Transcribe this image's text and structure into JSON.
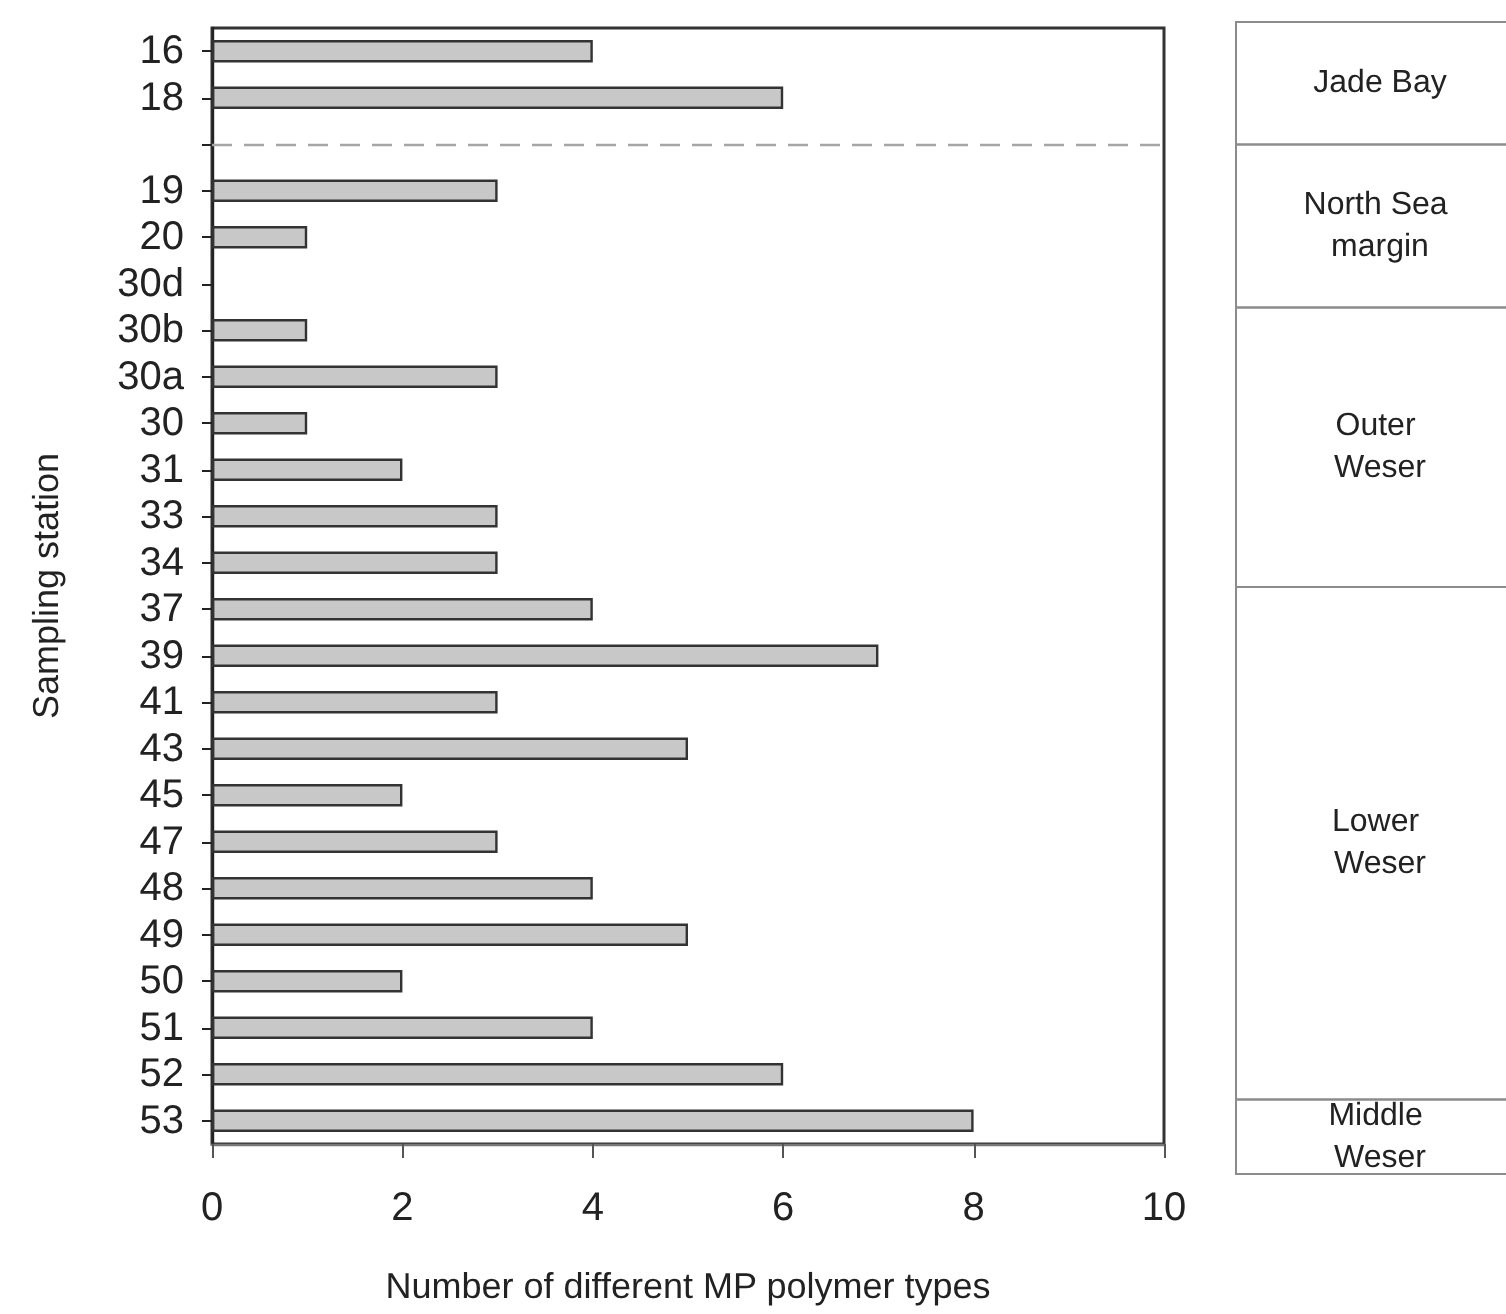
{
  "chart_data": {
    "type": "bar",
    "orientation": "horizontal",
    "xlabel": "Number of different MP polymer types",
    "ylabel": "Sampling station",
    "categories": [
      "16",
      "18",
      null,
      "19",
      "20",
      "30d",
      "30b",
      "30a",
      "30",
      "31",
      "33",
      "34",
      "37",
      "39",
      "41",
      "43",
      "45",
      "47",
      "48",
      "49",
      "50",
      "51",
      "52",
      "53"
    ],
    "values": [
      4,
      6,
      null,
      3,
      1,
      0,
      1,
      3,
      1,
      2,
      3,
      3,
      4,
      7,
      3,
      5,
      2,
      3,
      4,
      5,
      2,
      4,
      6,
      8
    ],
    "color": "#c8c8c8",
    "xlim": [
      0,
      10
    ],
    "xticks": [
      0,
      2,
      4,
      6,
      8,
      10
    ],
    "annotations": [
      "Jade Bay",
      "North Sea margin",
      "Outer Weser",
      "Lower Weser",
      "Middle Weser"
    ]
  }
}
